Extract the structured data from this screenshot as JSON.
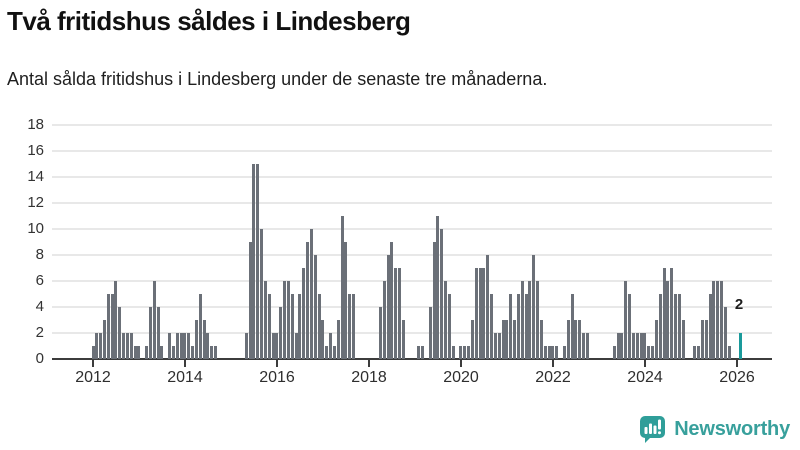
{
  "header": {
    "title": "Två fritidshus såldes i Lindesberg",
    "subtitle": "Antal sålda fritidshus i Lindesberg under de senaste tre månaderna."
  },
  "chart_data": {
    "type": "bar",
    "title": "Två fritidshus såldes i Lindesberg",
    "subtitle": "Antal sålda fritidshus i Lindesberg under de senaste tre månaderna.",
    "x_unit": "month",
    "start_month": "2012-01",
    "series": [
      {
        "year": 2012,
        "monthly": [
          1,
          2,
          2,
          3,
          5,
          5,
          6,
          4,
          2,
          2,
          2,
          1
        ]
      },
      {
        "year": 2013,
        "monthly": [
          1,
          0,
          1,
          4,
          6,
          4,
          1,
          0,
          2,
          1,
          2,
          2
        ]
      },
      {
        "year": 2014,
        "monthly": [
          2,
          2,
          1,
          3,
          5,
          3,
          2,
          1,
          1,
          0,
          0,
          0
        ]
      },
      {
        "year": 2015,
        "monthly": [
          0,
          0,
          0,
          0,
          2,
          9,
          15,
          15,
          10,
          6,
          5,
          2
        ]
      },
      {
        "year": 2016,
        "monthly": [
          2,
          4,
          6,
          6,
          5,
          2,
          5,
          7,
          9,
          10,
          8,
          5
        ]
      },
      {
        "year": 2017,
        "monthly": [
          3,
          1,
          2,
          1,
          3,
          11,
          9,
          5,
          5,
          0,
          0,
          0
        ]
      },
      {
        "year": 2018,
        "monthly": [
          0,
          0,
          0,
          4,
          6,
          8,
          9,
          7,
          7,
          3,
          0,
          0
        ]
      },
      {
        "year": 2019,
        "monthly": [
          0,
          1,
          1,
          0,
          4,
          9,
          11,
          10,
          6,
          5,
          1,
          0
        ]
      },
      {
        "year": 2020,
        "monthly": [
          1,
          1,
          1,
          3,
          7,
          7,
          7,
          8,
          5,
          2,
          2,
          3
        ]
      },
      {
        "year": 2021,
        "monthly": [
          3,
          5,
          3,
          5,
          6,
          5,
          6,
          8,
          6,
          3,
          1,
          1
        ]
      },
      {
        "year": 2022,
        "monthly": [
          1,
          1,
          0,
          1,
          3,
          5,
          3,
          3,
          2,
          2,
          0,
          0
        ]
      },
      {
        "year": 2023,
        "monthly": [
          0,
          0,
          0,
          0,
          1,
          2,
          2,
          6,
          5,
          2,
          2,
          2
        ]
      },
      {
        "year": 2024,
        "monthly": [
          2,
          1,
          1,
          3,
          5,
          7,
          6,
          7,
          5,
          5,
          3,
          0
        ]
      },
      {
        "year": 2025,
        "monthly": [
          0,
          1,
          1,
          3,
          3,
          5,
          6,
          6,
          6,
          4,
          1,
          0
        ]
      },
      {
        "year": 2026,
        "monthly": [
          0,
          2
        ]
      }
    ],
    "ylim": [
      0,
      18
    ],
    "y_ticks": [
      0,
      2,
      4,
      6,
      8,
      10,
      12,
      14,
      16,
      18
    ],
    "x_tick_years": [
      "2012",
      "2014",
      "2016",
      "2018",
      "2020",
      "2022",
      "2024",
      "2026"
    ],
    "grid": true,
    "legend": "none",
    "bar_color": "#6b7078",
    "highlight_color": "#1a9a9b",
    "highlight_last": true,
    "last_value_label": "2"
  },
  "footer": {
    "brand": "Newsworthy"
  }
}
